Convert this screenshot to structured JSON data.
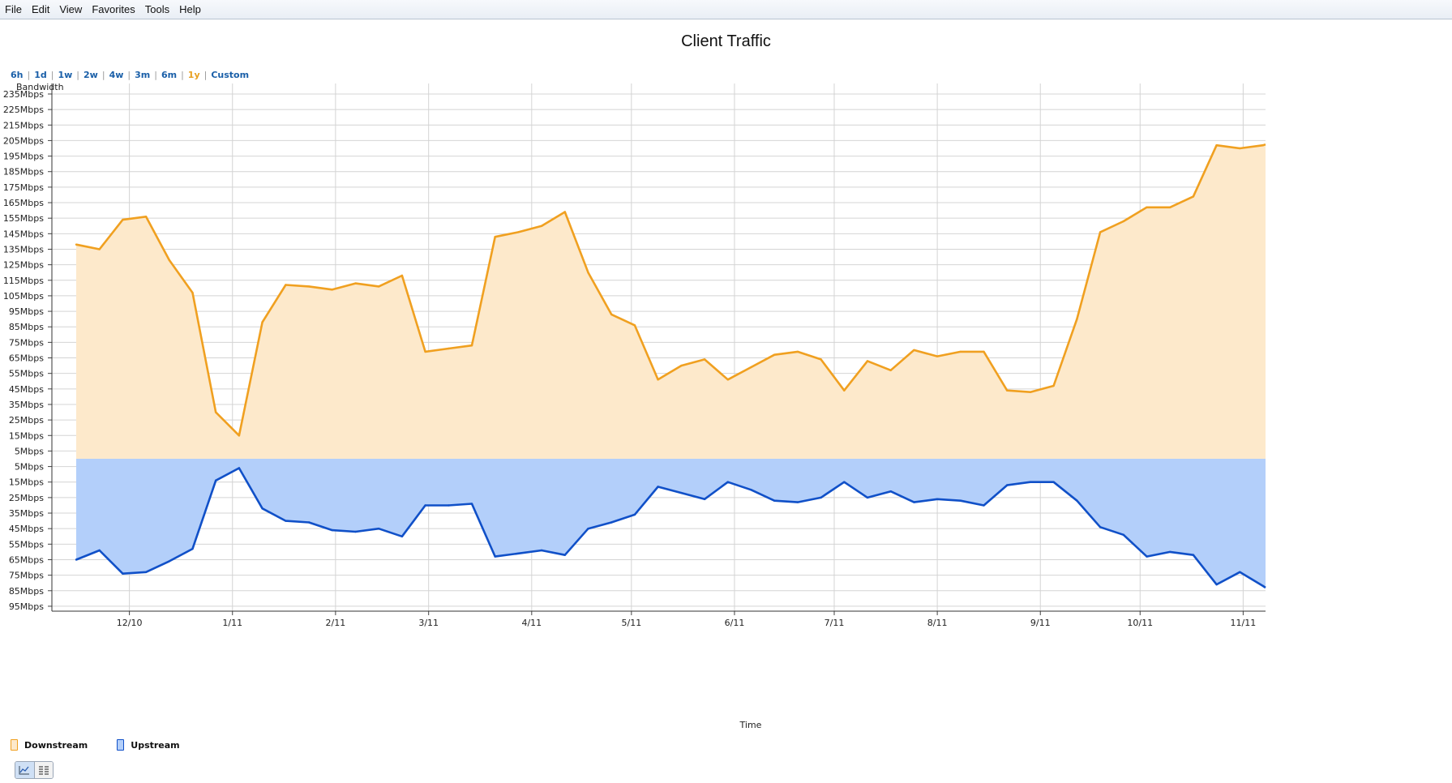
{
  "menu": [
    "File",
    "Edit",
    "View",
    "Favorites",
    "Tools",
    "Help"
  ],
  "title": "Client Traffic",
  "ranges": [
    {
      "label": "6h",
      "active": false
    },
    {
      "label": "1d",
      "active": false
    },
    {
      "label": "1w",
      "active": false
    },
    {
      "label": "2w",
      "active": false
    },
    {
      "label": "4w",
      "active": false
    },
    {
      "label": "3m",
      "active": false
    },
    {
      "label": "6m",
      "active": false
    },
    {
      "label": "1y",
      "active": true
    },
    {
      "label": "Custom",
      "active": false
    }
  ],
  "view_toggles": [
    {
      "icon": "line-chart-icon",
      "active": true
    },
    {
      "icon": "table-view-icon",
      "active": false
    }
  ],
  "chart_data": {
    "type": "area",
    "title": "Client Traffic",
    "ylabel": "Bandwidth",
    "xlabel": "Time",
    "y_unit": "Mbps",
    "ylim": [
      -100,
      240
    ],
    "y_ticks_up": [
      "235Mbps",
      "225Mbps",
      "215Mbps",
      "205Mbps",
      "195Mbps",
      "185Mbps",
      "175Mbps",
      "165Mbps",
      "155Mbps",
      "145Mbps",
      "135Mbps",
      "125Mbps",
      "115Mbps",
      "105Mbps",
      "95Mbps",
      "85Mbps",
      "75Mbps",
      "65Mbps",
      "55Mbps",
      "45Mbps",
      "35Mbps",
      "25Mbps",
      "15Mbps",
      "5Mbps"
    ],
    "y_ticks_down": [
      "5Mbps",
      "15Mbps",
      "25Mbps",
      "35Mbps",
      "45Mbps",
      "55Mbps",
      "65Mbps",
      "75Mbps",
      "85Mbps",
      "95Mbps"
    ],
    "x_tick_labels": [
      "12/10",
      "1/11",
      "2/11",
      "3/11",
      "4/11",
      "5/11",
      "6/11",
      "7/11",
      "8/11",
      "9/11",
      "10/11",
      "11/11"
    ],
    "x_tick_dates": [
      "2010-12-01",
      "2011-01-01",
      "2011-02-01",
      "2011-03-01",
      "2011-04-01",
      "2011-05-01",
      "2011-06-01",
      "2011-07-01",
      "2011-08-01",
      "2011-09-01",
      "2011-10-01",
      "2011-11-01"
    ],
    "grid": true,
    "legend_position": "bottom-left",
    "series": [
      {
        "name": "Downstream",
        "color": "#f0a020",
        "fill": "#fde9cb",
        "direction": "up",
        "points": [
          {
            "x": "2010-11-15",
            "y": 138
          },
          {
            "x": "2010-11-22",
            "y": 135
          },
          {
            "x": "2010-11-29",
            "y": 154
          },
          {
            "x": "2010-12-06",
            "y": 156
          },
          {
            "x": "2010-12-13",
            "y": 128
          },
          {
            "x": "2010-12-20",
            "y": 107
          },
          {
            "x": "2010-12-27",
            "y": 30
          },
          {
            "x": "2011-01-03",
            "y": 15
          },
          {
            "x": "2011-01-10",
            "y": 88
          },
          {
            "x": "2011-01-17",
            "y": 112
          },
          {
            "x": "2011-01-24",
            "y": 111
          },
          {
            "x": "2011-01-31",
            "y": 109
          },
          {
            "x": "2011-02-07",
            "y": 113
          },
          {
            "x": "2011-02-14",
            "y": 111
          },
          {
            "x": "2011-02-21",
            "y": 118
          },
          {
            "x": "2011-02-28",
            "y": 69
          },
          {
            "x": "2011-03-07",
            "y": 71
          },
          {
            "x": "2011-03-14",
            "y": 73
          },
          {
            "x": "2011-03-21",
            "y": 143
          },
          {
            "x": "2011-03-28",
            "y": 146
          },
          {
            "x": "2011-04-04",
            "y": 150
          },
          {
            "x": "2011-04-11",
            "y": 159
          },
          {
            "x": "2011-04-18",
            "y": 120
          },
          {
            "x": "2011-04-25",
            "y": 93
          },
          {
            "x": "2011-05-02",
            "y": 86
          },
          {
            "x": "2011-05-09",
            "y": 51
          },
          {
            "x": "2011-05-16",
            "y": 60
          },
          {
            "x": "2011-05-23",
            "y": 64
          },
          {
            "x": "2011-05-30",
            "y": 51
          },
          {
            "x": "2011-06-06",
            "y": 59
          },
          {
            "x": "2011-06-13",
            "y": 67
          },
          {
            "x": "2011-06-20",
            "y": 69
          },
          {
            "x": "2011-06-27",
            "y": 64
          },
          {
            "x": "2011-07-04",
            "y": 44
          },
          {
            "x": "2011-07-11",
            "y": 63
          },
          {
            "x": "2011-07-18",
            "y": 57
          },
          {
            "x": "2011-07-25",
            "y": 70
          },
          {
            "x": "2011-08-01",
            "y": 66
          },
          {
            "x": "2011-08-08",
            "y": 69
          },
          {
            "x": "2011-08-15",
            "y": 69
          },
          {
            "x": "2011-08-22",
            "y": 44
          },
          {
            "x": "2011-08-29",
            "y": 43
          },
          {
            "x": "2011-09-05",
            "y": 47
          },
          {
            "x": "2011-09-12",
            "y": 90
          },
          {
            "x": "2011-09-19",
            "y": 146
          },
          {
            "x": "2011-09-26",
            "y": 153
          },
          {
            "x": "2011-10-03",
            "y": 162
          },
          {
            "x": "2011-10-10",
            "y": 162
          },
          {
            "x": "2011-10-17",
            "y": 169
          },
          {
            "x": "2011-10-24",
            "y": 202
          },
          {
            "x": "2011-10-31",
            "y": 200
          },
          {
            "x": "2011-11-07",
            "y": 202
          }
        ]
      },
      {
        "name": "Upstream",
        "color": "#1050c8",
        "fill": "#b3cffa",
        "direction": "down",
        "points": [
          {
            "x": "2010-11-15",
            "y": 65
          },
          {
            "x": "2010-11-22",
            "y": 59
          },
          {
            "x": "2010-11-29",
            "y": 74
          },
          {
            "x": "2010-12-06",
            "y": 73
          },
          {
            "x": "2010-12-13",
            "y": 66
          },
          {
            "x": "2010-12-20",
            "y": 58
          },
          {
            "x": "2010-12-27",
            "y": 14
          },
          {
            "x": "2011-01-03",
            "y": 6
          },
          {
            "x": "2011-01-10",
            "y": 32
          },
          {
            "x": "2011-01-17",
            "y": 40
          },
          {
            "x": "2011-01-24",
            "y": 41
          },
          {
            "x": "2011-01-31",
            "y": 46
          },
          {
            "x": "2011-02-07",
            "y": 47
          },
          {
            "x": "2011-02-14",
            "y": 45
          },
          {
            "x": "2011-02-21",
            "y": 50
          },
          {
            "x": "2011-02-28",
            "y": 30
          },
          {
            "x": "2011-03-07",
            "y": 30
          },
          {
            "x": "2011-03-14",
            "y": 29
          },
          {
            "x": "2011-03-21",
            "y": 63
          },
          {
            "x": "2011-03-28",
            "y": 61
          },
          {
            "x": "2011-04-04",
            "y": 59
          },
          {
            "x": "2011-04-11",
            "y": 62
          },
          {
            "x": "2011-04-18",
            "y": 45
          },
          {
            "x": "2011-04-25",
            "y": 41
          },
          {
            "x": "2011-05-02",
            "y": 36
          },
          {
            "x": "2011-05-09",
            "y": 18
          },
          {
            "x": "2011-05-16",
            "y": 22
          },
          {
            "x": "2011-05-23",
            "y": 26
          },
          {
            "x": "2011-05-30",
            "y": 15
          },
          {
            "x": "2011-06-06",
            "y": 20
          },
          {
            "x": "2011-06-13",
            "y": 27
          },
          {
            "x": "2011-06-20",
            "y": 28
          },
          {
            "x": "2011-06-27",
            "y": 25
          },
          {
            "x": "2011-07-04",
            "y": 15
          },
          {
            "x": "2011-07-11",
            "y": 25
          },
          {
            "x": "2011-07-18",
            "y": 21
          },
          {
            "x": "2011-07-25",
            "y": 28
          },
          {
            "x": "2011-08-01",
            "y": 26
          },
          {
            "x": "2011-08-08",
            "y": 27
          },
          {
            "x": "2011-08-15",
            "y": 30
          },
          {
            "x": "2011-08-22",
            "y": 17
          },
          {
            "x": "2011-08-29",
            "y": 15
          },
          {
            "x": "2011-09-05",
            "y": 15
          },
          {
            "x": "2011-09-12",
            "y": 27
          },
          {
            "x": "2011-09-19",
            "y": 44
          },
          {
            "x": "2011-09-26",
            "y": 49
          },
          {
            "x": "2011-10-03",
            "y": 63
          },
          {
            "x": "2011-10-10",
            "y": 60
          },
          {
            "x": "2011-10-17",
            "y": 62
          },
          {
            "x": "2011-10-24",
            "y": 81
          },
          {
            "x": "2011-10-31",
            "y": 73
          },
          {
            "x": "2011-11-07",
            "y": 82
          }
        ]
      }
    ]
  }
}
